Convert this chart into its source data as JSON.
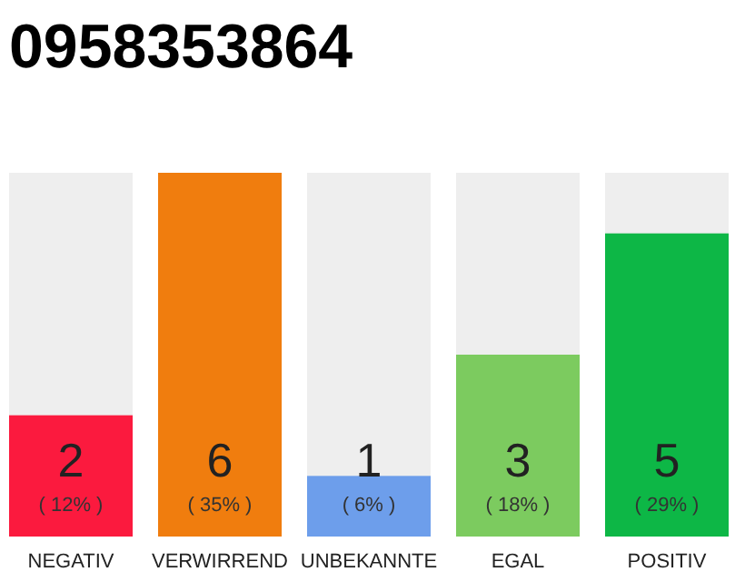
{
  "chart_data": {
    "type": "bar",
    "title": "0958353864",
    "categories": [
      "NEGATIV",
      "VERWIRREND",
      "UNBEKANNTE",
      "EGAL",
      "POSITIV"
    ],
    "values": [
      2,
      6,
      1,
      3,
      5
    ],
    "colors": [
      "#fb1a3e",
      "#f07d0e",
      "#6d9eeb",
      "#7ccb5f",
      "#0db746"
    ],
    "ylim": [
      0,
      6
    ],
    "tick_labels": "x",
    "data_labels": true,
    "annotations": [
      "( 12% )",
      "( 35% )",
      "( 6% )",
      "( 18% )",
      "( 29% )"
    ]
  }
}
